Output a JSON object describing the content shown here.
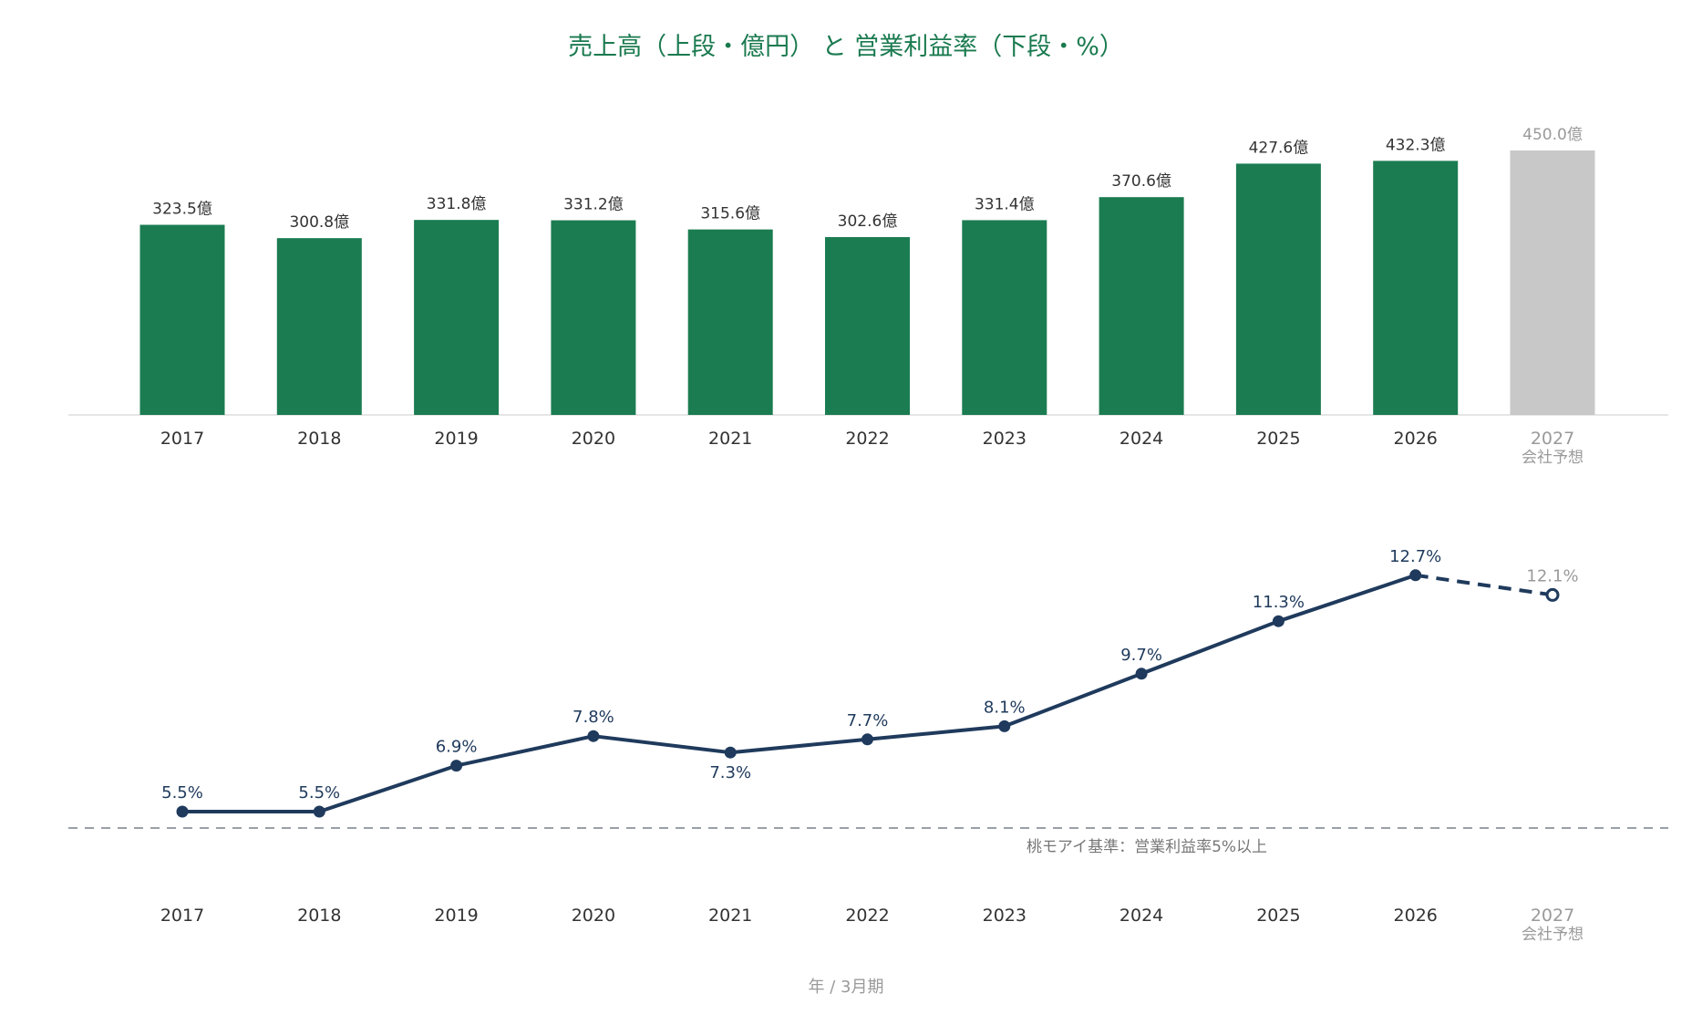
{
  "title": "売上高（上段・億円） と 営業利益率（下段・%）",
  "footer_label": "年 / 3月期",
  "colors": {
    "title": "#1a7a4f",
    "bar": "#1b7c51",
    "bar_forecast": "#c8c8c8",
    "line": "#1f3a5c",
    "forecast_text": "#9a9a9a",
    "axis_text": "#333333",
    "reference_line": "#9aa0a6",
    "reference_text": "#777777"
  },
  "chart_data": [
    {
      "type": "bar",
      "categories": [
        "2017",
        "2018",
        "2019",
        "2020",
        "2021",
        "2022",
        "2023",
        "2024",
        "2025",
        "2026",
        "2027"
      ],
      "category_sublabels": [
        "",
        "",
        "",
        "",
        "",
        "",
        "",
        "",
        "",
        "",
        "会社予想"
      ],
      "values": [
        323.5,
        300.8,
        331.8,
        331.2,
        315.6,
        302.6,
        331.4,
        370.6,
        427.6,
        432.3,
        450.0
      ],
      "value_labels": [
        "323.5億",
        "300.8億",
        "331.8億",
        "331.2億",
        "315.6億",
        "302.6億",
        "331.4億",
        "370.6億",
        "427.6億",
        "432.3億",
        "450.0億"
      ],
      "forecast": [
        false,
        false,
        false,
        false,
        false,
        false,
        false,
        false,
        false,
        false,
        true
      ],
      "unit": "億円",
      "ylim": [
        0,
        450
      ]
    },
    {
      "type": "line",
      "categories": [
        "2017",
        "2018",
        "2019",
        "2020",
        "2021",
        "2022",
        "2023",
        "2024",
        "2025",
        "2026",
        "2027"
      ],
      "category_sublabels": [
        "",
        "",
        "",
        "",
        "",
        "",
        "",
        "",
        "",
        "",
        "会社予想"
      ],
      "values": [
        5.5,
        5.5,
        6.9,
        7.8,
        7.3,
        7.7,
        8.1,
        9.7,
        11.3,
        12.7,
        12.1
      ],
      "value_labels": [
        "5.5%",
        "5.5%",
        "6.9%",
        "7.8%",
        "7.3%",
        "7.7%",
        "8.1%",
        "9.7%",
        "11.3%",
        "12.7%",
        "12.1%"
      ],
      "forecast": [
        false,
        false,
        false,
        false,
        false,
        false,
        false,
        false,
        false,
        false,
        true
      ],
      "unit": "%",
      "reference_line": {
        "value": 5.0,
        "label": "桃モアイ基準：営業利益率5%以上"
      }
    }
  ]
}
